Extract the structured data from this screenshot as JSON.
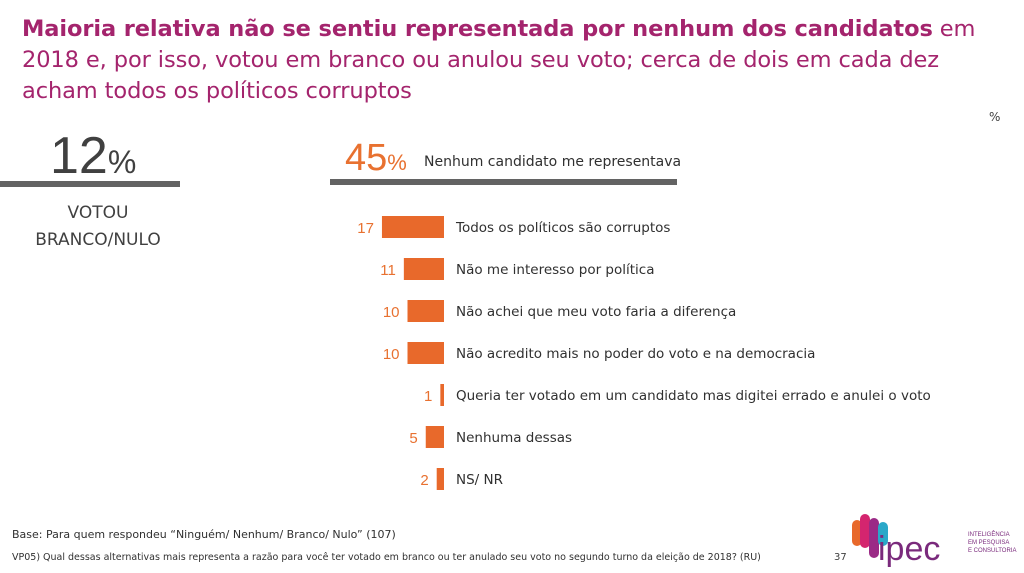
{
  "title": {
    "bold": "Maioria relativa não se sentiu representada por nenhum dos candidatos",
    "rest_line1": " em",
    "line2": "2018 e, por isso, votou em branco ou anulou seu voto; cerca de dois em cada dez",
    "line3": "acham todos os políticos corruptos"
  },
  "unit_symbol": "%",
  "left_stat": {
    "value": "12",
    "pct": "%",
    "label_line1": "VOTOU",
    "label_line2": "BRANCO/NULO"
  },
  "mid_stat": {
    "value": "45",
    "pct": "%",
    "label": "Nenhum candidato me representava"
  },
  "chart_data": {
    "type": "bar",
    "orientation": "horizontal",
    "categories": [
      "Todos os políticos são corruptos",
      "Não me interesso por política",
      "Não achei que meu voto faria a diferença",
      "Não acredito mais no poder do voto e na democracia",
      "Queria ter votado em um candidato mas digitei errado e anulei o voto",
      "Nenhuma dessas",
      "NS/ NR"
    ],
    "values": [
      17,
      11,
      10,
      10,
      1,
      5,
      2
    ],
    "bar_color": "#e8692b",
    "value_color": "#e87130"
  },
  "footer": {
    "base": "Base: Para quem respondeu “Ninguém/ Nenhum/ Branco/ Nulo” (107)",
    "question": "VP05) Qual dessas alternativas mais representa a razão para você ter votado em branco ou ter anulado seu voto no segundo turno da eleição de 2018? (RU)",
    "page": "37"
  },
  "logo": {
    "wordmark": "ipec",
    "tagline_1": "INTELIGÊNCIA",
    "tagline_2": "EM PESQUISA",
    "tagline_3": "E CONSULTORIA"
  }
}
